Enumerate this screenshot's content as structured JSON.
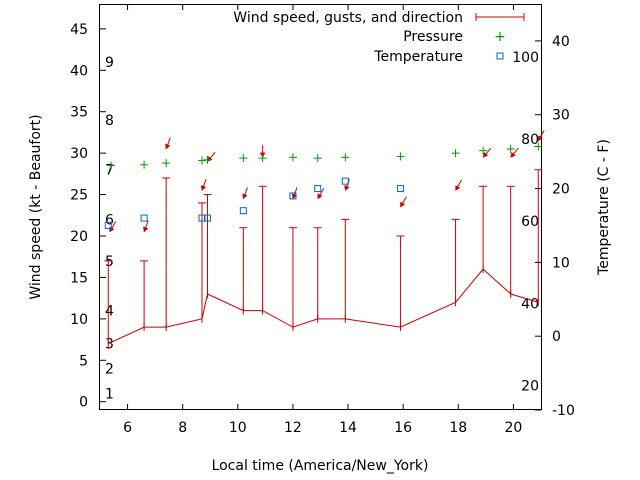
{
  "chart_data": {
    "type": "line",
    "xlabel": "Local time (America/New_York)",
    "ylabel_left": "Wind speed (kt - Beaufort)",
    "ylabel_right": "Temperature (C - F)",
    "xlim": [
      5.0,
      21.0
    ],
    "ylim_left": [
      -1,
      48
    ],
    "ylim_right": [
      -10,
      45
    ],
    "xticks": [
      6,
      8,
      10,
      12,
      14,
      16,
      18,
      20
    ],
    "yticks_left": [
      0,
      5,
      10,
      15,
      20,
      25,
      30,
      35,
      40,
      45
    ],
    "yticks_right": [
      -10,
      0,
      10,
      20,
      30,
      40
    ],
    "beaufort_labels": [
      {
        "text": "1",
        "kt": 1
      },
      {
        "text": "2",
        "kt": 4
      },
      {
        "text": "3",
        "kt": 7
      },
      {
        "text": "4",
        "kt": 11
      },
      {
        "text": "5",
        "kt": 17
      },
      {
        "text": "6",
        "kt": 22
      },
      {
        "text": "7",
        "kt": 28
      },
      {
        "text": "8",
        "kt": 34
      },
      {
        "text": "9",
        "kt": 41
      }
    ],
    "fahrenheit_labels": [
      {
        "text": "20",
        "c": -6.7
      },
      {
        "text": "40",
        "c": 4.4
      },
      {
        "text": "60",
        "c": 15.6
      },
      {
        "text": "80",
        "c": 26.7
      },
      {
        "text": "100",
        "c": 37.8
      }
    ],
    "legend": {
      "placement": "top-right",
      "wind": "Wind speed, gusts, and direction",
      "pressure": "Pressure",
      "temperature": "Temperature"
    },
    "colors": {
      "wind": "#cc0000",
      "pressure": "#009900",
      "temperature": "#0066cc"
    },
    "wind": {
      "x": [
        5.3,
        6.6,
        7.4,
        8.7,
        8.9,
        10.2,
        10.9,
        12.0,
        12.9,
        13.9,
        15.9,
        17.9,
        18.9,
        19.9,
        20.9
      ],
      "speed": [
        7,
        9,
        9,
        10,
        13,
        11,
        11,
        9,
        10,
        10,
        9,
        12,
        16,
        13,
        12
      ],
      "gust": [
        17,
        17,
        27,
        24,
        25,
        21,
        26,
        21,
        21,
        22,
        20,
        22,
        26,
        26,
        28
      ]
    },
    "arrows": [
      {
        "x": 5.35,
        "kt": 20.5,
        "dir": 30
      },
      {
        "x": 6.6,
        "kt": 20.5,
        "dir": 20
      },
      {
        "x": 7.4,
        "kt": 30.5,
        "dir": 20
      },
      {
        "x": 8.7,
        "kt": 25.5,
        "dir": 20
      },
      {
        "x": 8.9,
        "kt": 29.0,
        "dir": 40
      },
      {
        "x": 10.2,
        "kt": 24.5,
        "dir": 20
      },
      {
        "x": 10.9,
        "kt": 29.5,
        "dir": 0
      },
      {
        "x": 12.0,
        "kt": 24.5,
        "dir": 20
      },
      {
        "x": 12.9,
        "kt": 24.5,
        "dir": 30
      },
      {
        "x": 13.9,
        "kt": 25.5,
        "dir": 20
      },
      {
        "x": 15.9,
        "kt": 23.5,
        "dir": 30
      },
      {
        "x": 17.9,
        "kt": 25.5,
        "dir": 30
      },
      {
        "x": 18.9,
        "kt": 29.5,
        "dir": 40
      },
      {
        "x": 19.9,
        "kt": 29.5,
        "dir": 40
      },
      {
        "x": 20.9,
        "kt": 31.5,
        "dir": 30
      }
    ],
    "pressure": {
      "x": [
        5.4,
        6.6,
        7.4,
        8.7,
        8.9,
        10.2,
        10.9,
        12.0,
        12.9,
        13.9,
        15.9,
        17.9,
        18.9,
        19.9,
        20.9
      ],
      "y": [
        28.5,
        28.6,
        28.8,
        29.1,
        29.2,
        29.4,
        29.4,
        29.5,
        29.4,
        29.5,
        29.6,
        30.0,
        30.3,
        30.5,
        30.8
      ]
    },
    "temperature": {
      "x": [
        5.3,
        6.6,
        8.7,
        8.9,
        10.2,
        12.0,
        12.9,
        13.9,
        15.9
      ],
      "y": [
        15,
        16,
        16,
        16,
        17,
        19,
        20,
        21,
        20
      ]
    }
  }
}
